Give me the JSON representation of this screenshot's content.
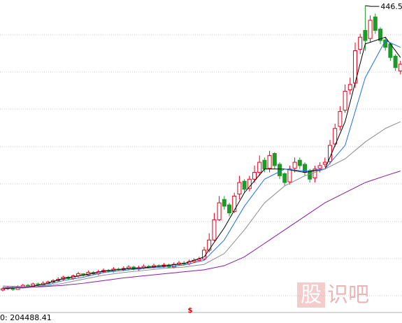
{
  "chart_data": {
    "type": "candlestick",
    "ylim": [
      0,
      455
    ],
    "open": [
      26,
      28,
      30,
      27,
      31,
      33,
      32,
      35,
      34,
      36,
      38,
      40,
      42,
      45,
      43,
      47,
      50,
      48,
      52,
      50,
      53,
      55,
      54,
      57,
      56,
      58,
      60,
      57,
      59,
      61,
      60,
      62,
      61,
      63,
      60,
      64,
      66,
      65,
      68,
      70,
      72,
      85,
      100,
      130,
      160,
      152,
      142,
      168,
      187,
      176,
      190,
      200,
      218,
      206,
      228,
      212,
      198,
      186,
      206,
      218,
      212,
      202,
      192,
      206,
      212,
      216,
      242,
      268,
      292,
      322,
      332,
      382,
      410,
      398,
      430,
      412,
      396,
      390,
      372,
      350
    ],
    "high": [
      30,
      32,
      31,
      33,
      35,
      35,
      37,
      37,
      39,
      40,
      42,
      45,
      47,
      47,
      49,
      53,
      51,
      55,
      54,
      56,
      58,
      57,
      60,
      59,
      61,
      63,
      62,
      62,
      64,
      63,
      65,
      64,
      66,
      65,
      67,
      69,
      69,
      71,
      73,
      75,
      90,
      110,
      140,
      165,
      165,
      155,
      170,
      195,
      190,
      195,
      210,
      225,
      222,
      232,
      230,
      215,
      200,
      210,
      222,
      222,
      215,
      205,
      210,
      215,
      222,
      248,
      272,
      298,
      330,
      340,
      392,
      405,
      446.54,
      432,
      435,
      415,
      400,
      392,
      375,
      365
    ],
    "low": [
      24,
      26,
      25,
      27,
      30,
      30,
      32,
      32,
      33,
      35,
      36,
      38,
      40,
      41,
      41,
      45,
      46,
      46,
      48,
      48,
      51,
      52,
      52,
      54,
      54,
      56,
      55,
      55,
      57,
      58,
      58,
      59,
      59,
      58,
      58,
      62,
      63,
      63,
      66,
      68,
      70,
      82,
      98,
      128,
      145,
      135,
      140,
      160,
      170,
      172,
      185,
      195,
      200,
      200,
      205,
      190,
      180,
      182,
      200,
      205,
      195,
      185,
      185,
      200,
      208,
      212,
      238,
      262,
      288,
      315,
      325,
      375,
      380,
      392,
      405,
      390,
      380,
      365,
      350,
      345
    ],
    "close": [
      28,
      30,
      27,
      31,
      33,
      32,
      35,
      34,
      36,
      38,
      40,
      42,
      45,
      43,
      47,
      50,
      48,
      52,
      50,
      53,
      55,
      54,
      57,
      56,
      58,
      60,
      57,
      59,
      61,
      60,
      62,
      61,
      63,
      60,
      64,
      66,
      65,
      68,
      70,
      72,
      85,
      100,
      130,
      155,
      150,
      140,
      165,
      185,
      175,
      190,
      200,
      215,
      205,
      225,
      210,
      195,
      185,
      205,
      215,
      210,
      200,
      190,
      205,
      210,
      215,
      240,
      265,
      290,
      320,
      330,
      380,
      400,
      395,
      425,
      410,
      395,
      385,
      370,
      355,
      360
    ],
    "up_color": "#e8001c",
    "down_color": "#1f9a2a",
    "lines": [
      {
        "color": "#000000",
        "x": [
          0,
          4,
          8,
          12,
          16,
          20,
          24,
          28,
          32,
          36,
          40,
          44,
          48,
          52,
          56,
          60,
          64,
          68,
          72,
          76,
          79
        ],
        "values": [
          28,
          30,
          34,
          43,
          48,
          54,
          57,
          59,
          62,
          65,
          75,
          118,
          170,
          205,
          205,
          200,
          205,
          275,
          390,
          400,
          370
        ]
      },
      {
        "color": "#1e6fe0",
        "x": [
          0,
          4,
          8,
          12,
          16,
          20,
          24,
          28,
          32,
          36,
          40,
          44,
          48,
          52,
          56,
          60,
          64,
          68,
          72,
          76,
          79
        ],
        "values": [
          30,
          29,
          32,
          40,
          45,
          52,
          55,
          58,
          60,
          63,
          70,
          100,
          150,
          190,
          205,
          202,
          205,
          240,
          340,
          395,
          385
        ]
      },
      {
        "color": "#8c8c8c",
        "x": [
          0,
          4,
          8,
          12,
          16,
          20,
          24,
          28,
          32,
          36,
          40,
          44,
          48,
          52,
          56,
          60,
          64,
          68,
          72,
          76,
          79
        ],
        "values": [
          32,
          31,
          31,
          36,
          42,
          48,
          52,
          55,
          58,
          60,
          64,
          80,
          115,
          155,
          180,
          195,
          205,
          220,
          245,
          265,
          275
        ]
      },
      {
        "color": "#8a1aa0",
        "x": [
          0,
          4,
          8,
          12,
          16,
          20,
          24,
          28,
          32,
          36,
          40,
          44,
          48,
          52,
          56,
          60,
          64,
          68,
          72,
          76,
          79
        ],
        "values": [
          30,
          30,
          31,
          33,
          36,
          40,
          44,
          47,
          50,
          53,
          56,
          62,
          75,
          95,
          115,
          135,
          155,
          170,
          185,
          195,
          202
        ]
      }
    ],
    "high_label": "446.54",
    "footer_text": "0: 204488.41",
    "marker_text": "$",
    "watermark": [
      "股",
      "识吧"
    ]
  }
}
